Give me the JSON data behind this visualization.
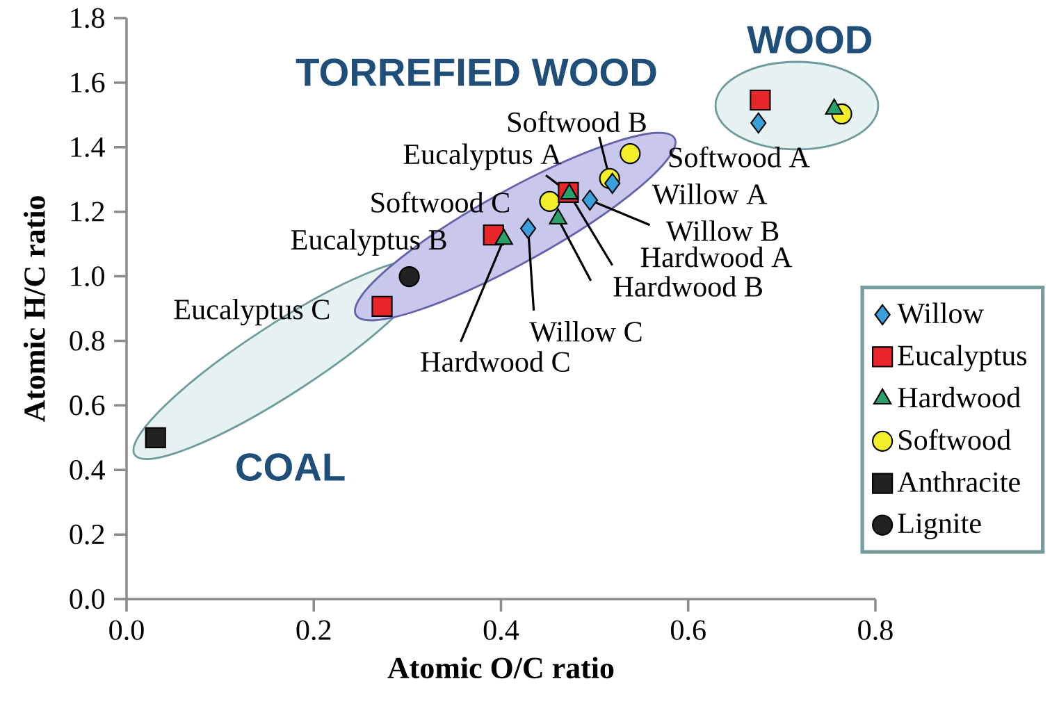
{
  "chart_data": {
    "type": "scatter",
    "xlabel": "Atomic O/C ratio",
    "ylabel": "Atomic H/C ratio",
    "xlim": [
      0,
      0.8
    ],
    "ylim": [
      0,
      1.8
    ],
    "xticks": [
      {
        "value": 0,
        "label": "0.0"
      },
      {
        "value": 0.2,
        "label": "0.2"
      },
      {
        "value": 0.4,
        "label": "0.4"
      },
      {
        "value": 0.6,
        "label": "0.6"
      },
      {
        "value": 0.8,
        "label": "0.8"
      }
    ],
    "yticks": [
      {
        "value": 0,
        "label": "0.0"
      },
      {
        "value": 0.2,
        "label": "0.2"
      },
      {
        "value": 0.4,
        "label": "0.4"
      },
      {
        "value": 0.6,
        "label": "0.6"
      },
      {
        "value": 0.8,
        "label": "0.8"
      },
      {
        "value": 1.0,
        "label": "1.0"
      },
      {
        "value": 1.2,
        "label": "1.2"
      },
      {
        "value": 1.4,
        "label": "1.4"
      },
      {
        "value": 1.6,
        "label": "1.6"
      },
      {
        "value": 1.8,
        "label": "1.8"
      }
    ],
    "legend": "right",
    "grid": false,
    "series": [
      {
        "name": "Willow",
        "color": "#3aa0dc",
        "marker": "diamond",
        "x": [
          0.675,
          0.519,
          0.495,
          0.429
        ],
        "values": [
          1.475,
          1.288,
          1.236,
          1.148
        ]
      },
      {
        "name": "Eucalyptus",
        "color": "#e8262a",
        "marker": "square",
        "x": [
          0.677,
          0.472,
          0.392,
          0.273
        ],
        "values": [
          1.546,
          1.26,
          1.128,
          0.907
        ]
      },
      {
        "name": "Hardwood",
        "color": "#2aa06a",
        "marker": "triangle",
        "x": [
          0.756,
          0.473,
          0.461,
          0.403
        ],
        "values": [
          1.518,
          1.255,
          1.178,
          1.115
        ]
      },
      {
        "name": "Softwood",
        "color": "#f2ef2a",
        "marker": "circle",
        "x": [
          0.764,
          0.538,
          0.516,
          0.452
        ],
        "values": [
          1.503,
          1.38,
          1.303,
          1.232
        ]
      },
      {
        "name": "Anthracite",
        "color": "#222222",
        "marker": "square",
        "x": [
          0.031
        ],
        "values": [
          0.5
        ]
      },
      {
        "name": "Lignite",
        "color": "#222222",
        "marker": "circle",
        "x": [
          0.302
        ],
        "values": [
          0.999
        ]
      }
    ],
    "annotations": [
      {
        "text": "Softwood B",
        "x": 0.516,
        "y": 1.303
      },
      {
        "text": "Eucalyptus A",
        "x": 0.472,
        "y": 1.26
      },
      {
        "text": "Softwood A",
        "x": 0.538,
        "y": 1.38
      },
      {
        "text": "Willow A",
        "x": 0.519,
        "y": 1.288
      },
      {
        "text": "Softwood C",
        "x": 0.452,
        "y": 1.232
      },
      {
        "text": "Willow B",
        "x": 0.495,
        "y": 1.236
      },
      {
        "text": "Hardwood A",
        "x": 0.473,
        "y": 1.255
      },
      {
        "text": "Eucalyptus B",
        "x": 0.392,
        "y": 1.128
      },
      {
        "text": "Hardwood B",
        "x": 0.461,
        "y": 1.178
      },
      {
        "text": "Eucalyptus C",
        "x": 0.273,
        "y": 0.907
      },
      {
        "text": "Willow C",
        "x": 0.429,
        "y": 1.148
      },
      {
        "text": "Hardwood C",
        "x": 0.403,
        "y": 1.115
      },
      "WOOD",
      "TORREFIED WOOD",
      "COAL"
    ]
  }
}
